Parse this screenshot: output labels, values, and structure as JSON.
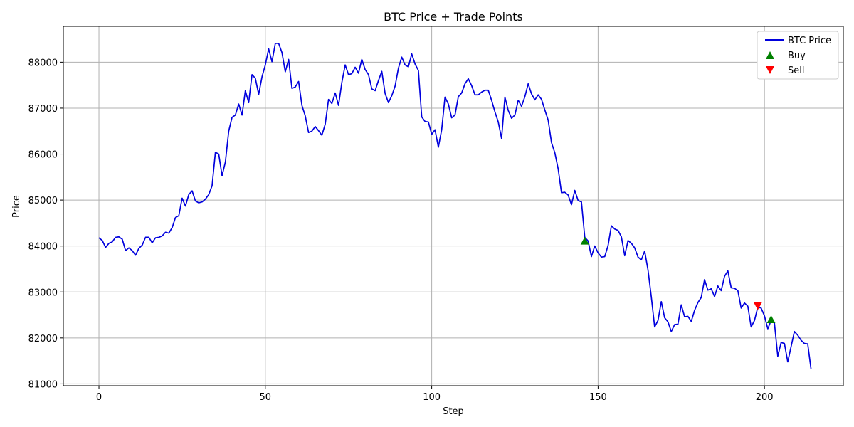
{
  "chart_data": {
    "type": "line",
    "title": "BTC Price + Trade Points",
    "xlabel": "Step",
    "ylabel": "Price",
    "xlim": [
      -10.7,
      223.7
    ],
    "ylim": [
      80960,
      88780
    ],
    "x_ticks": [
      0,
      50,
      100,
      150,
      200
    ],
    "y_ticks": [
      81000,
      82000,
      83000,
      84000,
      85000,
      86000,
      87000,
      88000
    ],
    "grid": true,
    "legend_position": "top-right",
    "series": [
      {
        "name": "BTC Price",
        "color": "#0000dd",
        "x_start": 0,
        "values": [
          84180,
          84120,
          83970,
          84060,
          84090,
          84190,
          84200,
          84150,
          83900,
          83960,
          83900,
          83800,
          83950,
          84020,
          84190,
          84190,
          84070,
          84180,
          84190,
          84220,
          84300,
          84280,
          84400,
          84620,
          84660,
          85040,
          84870,
          85120,
          85200,
          84980,
          84940,
          84960,
          85020,
          85120,
          85310,
          86040,
          86000,
          85530,
          85830,
          86500,
          86800,
          86850,
          87090,
          86850,
          87380,
          87120,
          87730,
          87650,
          87300,
          87680,
          87940,
          88290,
          88010,
          88410,
          88410,
          88210,
          87790,
          88060,
          87430,
          87460,
          87580,
          87060,
          86830,
          86470,
          86500,
          86600,
          86510,
          86410,
          86650,
          87190,
          87100,
          87330,
          87060,
          87560,
          87940,
          87730,
          87750,
          87890,
          87760,
          88060,
          87840,
          87730,
          87420,
          87380,
          87600,
          87800,
          87320,
          87120,
          87270,
          87480,
          87870,
          88110,
          87940,
          87900,
          88180,
          87960,
          87820,
          86810,
          86710,
          86700,
          86430,
          86530,
          86150,
          86530,
          87240,
          87090,
          86790,
          86850,
          87250,
          87330,
          87530,
          87640,
          87490,
          87290,
          87290,
          87350,
          87390,
          87390,
          87170,
          86920,
          86700,
          86340,
          87240,
          86950,
          86780,
          86850,
          87170,
          87040,
          87250,
          87530,
          87310,
          87180,
          87290,
          87190,
          86960,
          86740,
          86250,
          86030,
          85680,
          85160,
          85170,
          85110,
          84900,
          85210,
          84990,
          84960,
          84190,
          84110,
          83770,
          84000,
          83850,
          83760,
          83770,
          84010,
          84440,
          84370,
          84340,
          84200,
          83790,
          84120,
          84060,
          83960,
          83760,
          83700,
          83890,
          83480,
          82890,
          82240,
          82380,
          82790,
          82440,
          82350,
          82140,
          82290,
          82300,
          82720,
          82460,
          82470,
          82360,
          82600,
          82770,
          82880,
          83270,
          83040,
          83070,
          82900,
          83130,
          83030,
          83340,
          83460,
          83090,
          83080,
          83030,
          82650,
          82760,
          82690,
          82240,
          82380,
          82670,
          82650,
          82480,
          82200,
          82380,
          82320,
          81600,
          81900,
          81880,
          81480,
          81810,
          82140,
          82060,
          81950,
          81880,
          81870,
          81320
        ]
      }
    ],
    "markers": [
      {
        "name": "Buy",
        "symbol": "triangle-up",
        "color": "#008000",
        "points": [
          {
            "x": 146,
            "y": 84110
          },
          {
            "x": 202,
            "y": 82400
          }
        ]
      },
      {
        "name": "Sell",
        "symbol": "triangle-down",
        "color": "#ff0000",
        "points": [
          {
            "x": 198,
            "y": 82700
          }
        ]
      }
    ]
  }
}
